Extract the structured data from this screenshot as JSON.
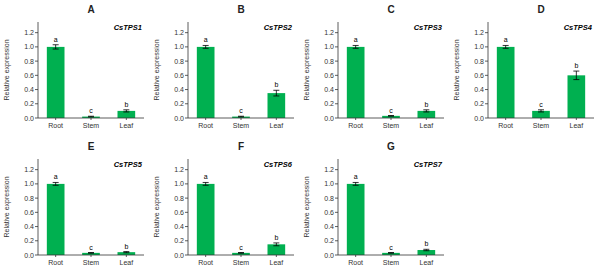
{
  "chart_data": [
    {
      "type": "bar",
      "title": "A",
      "annotations": [
        {
          "text": "CsTPS1"
        },
        {
          "text": "a",
          "category": "Root"
        },
        {
          "text": "c",
          "category": "Stem"
        },
        {
          "text": "b",
          "category": "Leaf"
        }
      ],
      "categories": [
        "Root",
        "Stem",
        "Leaf"
      ],
      "values": [
        1.0,
        0.02,
        0.1
      ],
      "errors": [
        0.03,
        0.005,
        0.015
      ],
      "color": "#00b050",
      "y_label": "Relative expression",
      "ylim": [
        0,
        1.35
      ],
      "yticks": [
        {
          "value": 0,
          "label": "0.0"
        },
        0.2,
        0.4,
        0.6,
        0.8,
        {
          "value": 1,
          "label": "1.0"
        },
        1.2
      ],
      "grid": false
    },
    {
      "type": "bar",
      "title": "B",
      "annotations": [
        {
          "text": "CsTPS2"
        },
        {
          "text": "a",
          "category": "Root"
        },
        {
          "text": "c",
          "category": "Stem"
        },
        {
          "text": "b",
          "category": "Leaf"
        }
      ],
      "categories": [
        "Root",
        "Stem",
        "Leaf"
      ],
      "values": [
        1.0,
        0.02,
        0.35
      ],
      "errors": [
        0.02,
        0.005,
        0.04
      ],
      "color": "#00b050",
      "y_label": "Relative expression",
      "ylim": [
        0,
        1.35
      ],
      "yticks": [
        {
          "value": 0,
          "label": "0.0"
        },
        0.2,
        0.4,
        0.6,
        0.8,
        {
          "value": 1,
          "label": "1.0"
        },
        1.2
      ],
      "grid": false
    },
    {
      "type": "bar",
      "title": "C",
      "annotations": [
        {
          "text": "CsTPS3"
        },
        {
          "text": "a",
          "category": "Root"
        },
        {
          "text": "c",
          "category": "Stem"
        },
        {
          "text": "b",
          "category": "Leaf"
        }
      ],
      "categories": [
        "Root",
        "Stem",
        "Leaf"
      ],
      "values": [
        1.0,
        0.03,
        0.1
      ],
      "errors": [
        0.02,
        0.005,
        0.015
      ],
      "color": "#00b050",
      "y_label": "Relative expression",
      "ylim": [
        0,
        1.35
      ],
      "yticks": [
        {
          "value": 0,
          "label": "0.0"
        },
        0.2,
        0.4,
        0.6,
        0.8,
        {
          "value": 1,
          "label": "1.0"
        },
        1.2
      ],
      "grid": false
    },
    {
      "type": "bar",
      "title": "D",
      "annotations": [
        {
          "text": "CsTPS4"
        },
        {
          "text": "a",
          "category": "Root"
        },
        {
          "text": "c",
          "category": "Stem"
        },
        {
          "text": "b",
          "category": "Leaf"
        }
      ],
      "categories": [
        "Root",
        "Stem",
        "Leaf"
      ],
      "values": [
        1.0,
        0.1,
        0.6
      ],
      "errors": [
        0.02,
        0.015,
        0.06
      ],
      "color": "#00b050",
      "y_label": "Relative expression",
      "ylim": [
        0,
        1.35
      ],
      "yticks": [
        {
          "value": 0,
          "label": "0.0"
        },
        0.2,
        0.4,
        0.6,
        0.8,
        {
          "value": 1,
          "label": "1.0"
        },
        1.2
      ],
      "grid": false
    },
    {
      "type": "bar",
      "title": "E",
      "annotations": [
        {
          "text": "CsTPS5"
        },
        {
          "text": "a",
          "category": "Root"
        },
        {
          "text": "c",
          "category": "Stem"
        },
        {
          "text": "b",
          "category": "Leaf"
        }
      ],
      "categories": [
        "Root",
        "Stem",
        "Leaf"
      ],
      "values": [
        1.0,
        0.03,
        0.04
      ],
      "errors": [
        0.02,
        0.005,
        0.008
      ],
      "color": "#00b050",
      "y_label": "Relative expression",
      "ylim": [
        0,
        1.35
      ],
      "yticks": [
        {
          "value": 0,
          "label": "0.0"
        },
        0.2,
        0.4,
        0.6,
        0.8,
        {
          "value": 1,
          "label": "1.0"
        },
        1.2
      ],
      "grid": false
    },
    {
      "type": "bar",
      "title": "F",
      "annotations": [
        {
          "text": "CsTPS6"
        },
        {
          "text": "a",
          "category": "Root"
        },
        {
          "text": "c",
          "category": "Stem"
        },
        {
          "text": "b",
          "category": "Leaf"
        }
      ],
      "categories": [
        "Root",
        "Stem",
        "Leaf"
      ],
      "values": [
        1.0,
        0.03,
        0.15
      ],
      "errors": [
        0.02,
        0.005,
        0.02
      ],
      "color": "#00b050",
      "y_label": "Relative expression",
      "ylim": [
        0,
        1.35
      ],
      "yticks": [
        {
          "value": 0,
          "label": "0.0"
        },
        0.2,
        0.4,
        0.6,
        0.8,
        {
          "value": 1,
          "label": "1.0"
        },
        1.2
      ],
      "grid": false
    },
    {
      "type": "bar",
      "title": "G",
      "annotations": [
        {
          "text": "CsTPS7"
        },
        {
          "text": "a",
          "category": "Root"
        },
        {
          "text": "c",
          "category": "Stem"
        },
        {
          "text": "b",
          "category": "Leaf"
        }
      ],
      "categories": [
        "Root",
        "Stem",
        "Leaf"
      ],
      "values": [
        1.0,
        0.03,
        0.07
      ],
      "errors": [
        0.02,
        0.005,
        0.01
      ],
      "color": "#00b050",
      "y_label": "Relative expression",
      "ylim": [
        0,
        1.35
      ],
      "yticks": [
        {
          "value": 0,
          "label": "0.0"
        },
        0.2,
        0.4,
        0.6,
        0.8,
        {
          "value": 1,
          "label": "1.0"
        },
        1.2
      ],
      "grid": false
    }
  ]
}
